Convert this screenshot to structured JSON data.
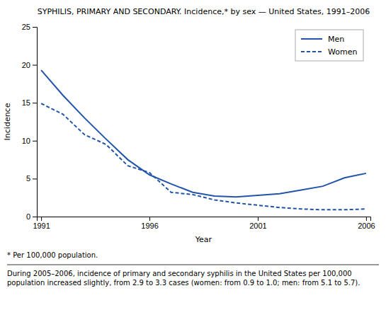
{
  "chart_data": {
    "type": "line",
    "title": "SYPHILIS, PRIMARY AND SECONDARY. Incidence,* by sex — United States, 1991–2006",
    "x_label": "Year",
    "y_label": "Incidence",
    "annotations": [
      "* Per 100,000 population.",
      "During 2005–2006, incidence of primary and secondary syphilis in the United States per 100,000 population increased slightly, from 2.9 to 3.3 cases (women: from 0.9 to 1.0; men: from 5.1 to 5.7)."
    ],
    "x": [
      1991,
      1992,
      1993,
      1994,
      1995,
      1996,
      1997,
      1998,
      1999,
      2000,
      2001,
      2002,
      2003,
      2004,
      2005,
      2006
    ],
    "series": [
      {
        "name": "Men",
        "color": "#2255aa",
        "line_style": "solid",
        "values": [
          19.3,
          16.0,
          13.0,
          10.2,
          7.5,
          5.5,
          4.3,
          3.2,
          2.7,
          2.6,
          2.8,
          3.0,
          3.5,
          4.0,
          5.1,
          5.7
        ]
      },
      {
        "name": "Women",
        "color": "#2255aa",
        "line_style": "dashed",
        "values": [
          14.9,
          13.5,
          10.8,
          9.5,
          6.7,
          5.8,
          3.2,
          2.9,
          2.2,
          1.8,
          1.5,
          1.2,
          1.0,
          0.9,
          0.9,
          1.0
        ]
      }
    ],
    "xlim": [
      1990.8,
      2006.2
    ],
    "xticks": [
      1991,
      1996,
      2001,
      2006
    ],
    "ylim": [
      0,
      25
    ],
    "yticks": [
      0,
      5,
      10,
      15,
      20,
      25
    ],
    "grid": false,
    "legend": "upper right"
  }
}
